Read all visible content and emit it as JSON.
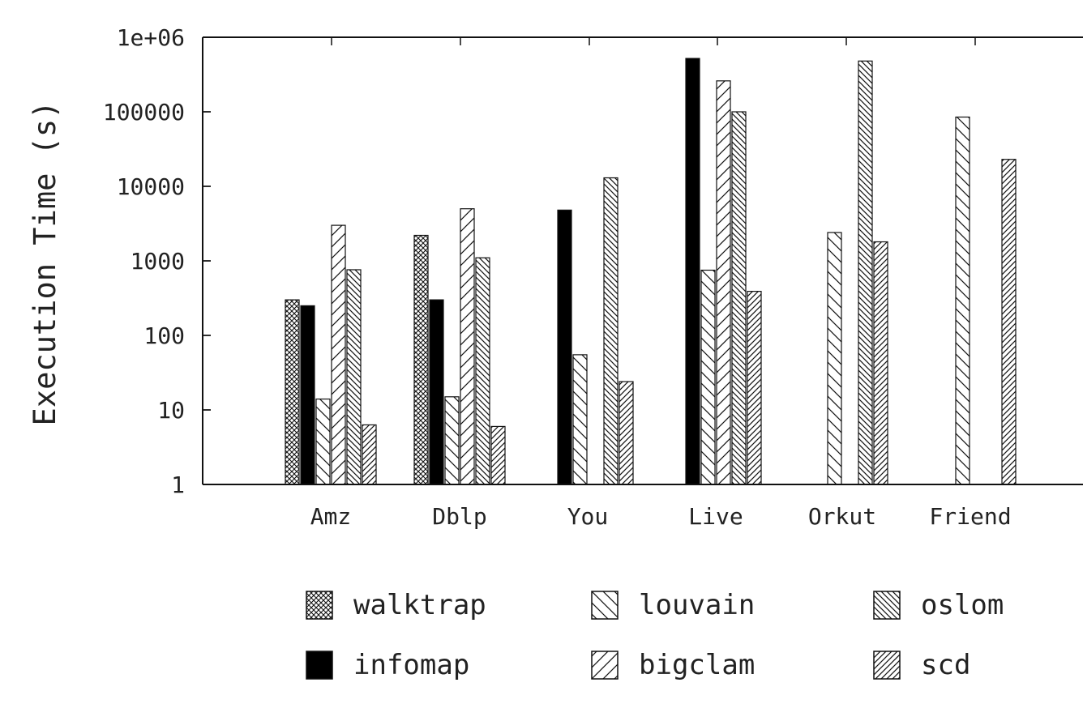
{
  "chart_data": {
    "type": "bar",
    "title": "",
    "xlabel": "",
    "ylabel": "Execution Time (s)",
    "yscale": "log",
    "ylim": [
      1,
      1000000
    ],
    "yticks": [
      {
        "value": 1,
        "label": "1"
      },
      {
        "value": 10,
        "label": "10"
      },
      {
        "value": 100,
        "label": "100"
      },
      {
        "value": 1000,
        "label": "1000"
      },
      {
        "value": 10000,
        "label": "10000"
      },
      {
        "value": 100000,
        "label": "100000"
      },
      {
        "value": 1000000,
        "label": "1e+06"
      }
    ],
    "grid": false,
    "legend_position": "bottom",
    "categories": [
      "Amz",
      "Dblp",
      "You",
      "Live",
      "Orkut",
      "Friend"
    ],
    "series": [
      {
        "name": "walktrap",
        "pattern": "crosshatch",
        "values": [
          300,
          2200,
          null,
          null,
          null,
          null
        ]
      },
      {
        "name": "infomap",
        "pattern": "solid",
        "values": [
          250,
          300,
          4800,
          520000,
          null,
          null
        ]
      },
      {
        "name": "louvain",
        "pattern": "backslash",
        "values": [
          14,
          15,
          55,
          750,
          2400,
          85000
        ]
      },
      {
        "name": "bigclam",
        "pattern": "slash",
        "values": [
          3000,
          5000,
          null,
          260000,
          null,
          null
        ]
      },
      {
        "name": "oslom",
        "pattern": "dense-backslash",
        "values": [
          760,
          1100,
          13000,
          100000,
          480000,
          null
        ]
      },
      {
        "name": "scd",
        "pattern": "dense-slash",
        "values": [
          6.3,
          6,
          24,
          390,
          1800,
          23000
        ]
      }
    ]
  }
}
